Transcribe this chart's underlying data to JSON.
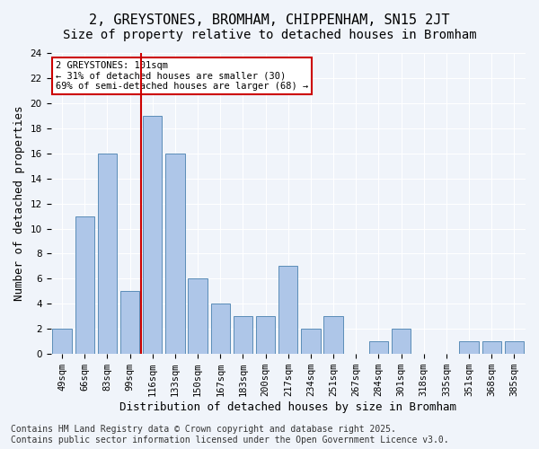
{
  "title": "2, GREYSTONES, BROMHAM, CHIPPENHAM, SN15 2JT",
  "subtitle": "Size of property relative to detached houses in Bromham",
  "xlabel": "Distribution of detached houses by size in Bromham",
  "ylabel": "Number of detached properties",
  "categories": [
    "49sqm",
    "66sqm",
    "83sqm",
    "99sqm",
    "116sqm",
    "133sqm",
    "150sqm",
    "167sqm",
    "183sqm",
    "200sqm",
    "217sqm",
    "234sqm",
    "251sqm",
    "267sqm",
    "284sqm",
    "301sqm",
    "318sqm",
    "335sqm",
    "351sqm",
    "368sqm",
    "385sqm"
  ],
  "values": [
    2,
    11,
    16,
    5,
    19,
    16,
    6,
    4,
    3,
    3,
    7,
    2,
    3,
    0,
    1,
    2,
    0,
    0,
    1,
    1,
    1
  ],
  "bar_color": "#aec6e8",
  "bar_edge_color": "#5b8db8",
  "vline_x_index": 3,
  "vline_color": "#cc0000",
  "annotation_text": "2 GREYSTONES: 101sqm\n← 31% of detached houses are smaller (30)\n69% of semi-detached houses are larger (68) →",
  "annotation_box_color": "#ffffff",
  "annotation_box_edge": "#cc0000",
  "ylim": [
    0,
    24
  ],
  "yticks": [
    0,
    2,
    4,
    6,
    8,
    10,
    12,
    14,
    16,
    18,
    20,
    22,
    24
  ],
  "footer": "Contains HM Land Registry data © Crown copyright and database right 2025.\nContains public sector information licensed under the Open Government Licence v3.0.",
  "bg_color": "#f0f4fa",
  "grid_color": "#ffffff",
  "title_fontsize": 11,
  "subtitle_fontsize": 10,
  "axis_fontsize": 9,
  "tick_fontsize": 7.5,
  "footer_fontsize": 7
}
